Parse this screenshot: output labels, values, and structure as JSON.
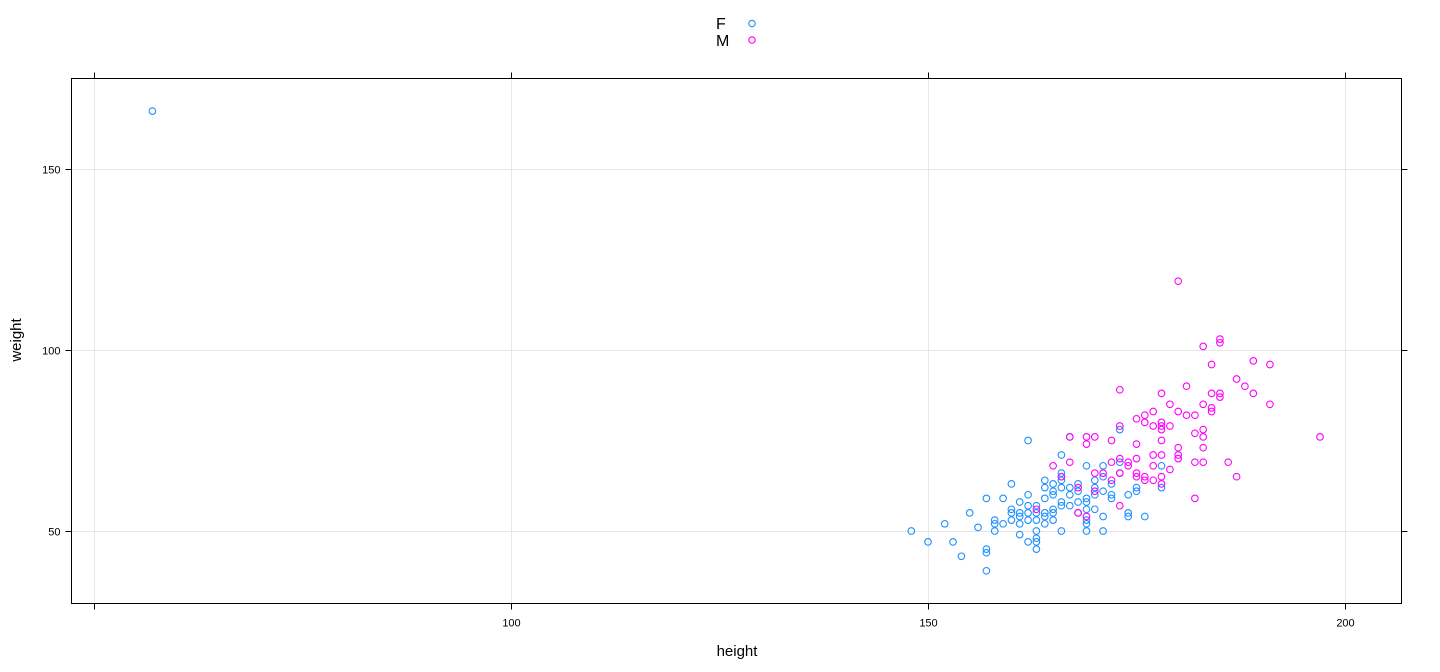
{
  "chart_data": {
    "type": "scatter",
    "title": "",
    "xlabel": "height",
    "ylabel": "weight",
    "xlim": [
      47.2,
      206.7
    ],
    "ylim": [
      30,
      175
    ],
    "x_ticks": [
      50,
      100,
      150,
      200
    ],
    "x_tick_labels": [
      "",
      "100",
      "150",
      "200"
    ],
    "y_ticks": [
      50,
      100,
      150
    ],
    "y_tick_labels": [
      "50",
      "100",
      "150"
    ],
    "grid": true,
    "legend": {
      "position": "top",
      "entries": [
        "F",
        "M"
      ]
    },
    "series": [
      {
        "name": "F",
        "color": "#1e90ff",
        "points": [
          [
            57,
            166
          ],
          [
            148,
            50
          ],
          [
            150,
            47
          ],
          [
            152,
            52
          ],
          [
            153,
            47
          ],
          [
            154,
            43
          ],
          [
            155,
            55
          ],
          [
            156,
            51
          ],
          [
            157,
            45
          ],
          [
            157,
            44
          ],
          [
            157,
            39
          ],
          [
            157,
            59
          ],
          [
            158,
            53
          ],
          [
            158,
            52
          ],
          [
            158,
            50
          ],
          [
            159,
            59
          ],
          [
            159,
            52
          ],
          [
            160,
            63
          ],
          [
            160,
            56
          ],
          [
            160,
            55
          ],
          [
            160,
            53
          ],
          [
            161,
            58
          ],
          [
            161,
            55
          ],
          [
            161,
            54
          ],
          [
            161,
            52
          ],
          [
            161,
            49
          ],
          [
            162,
            60
          ],
          [
            162,
            57
          ],
          [
            162,
            55
          ],
          [
            162,
            53
          ],
          [
            162,
            47
          ],
          [
            162,
            75
          ],
          [
            163,
            57
          ],
          [
            163,
            55
          ],
          [
            163,
            53
          ],
          [
            163,
            48
          ],
          [
            163,
            47
          ],
          [
            163,
            45
          ],
          [
            163,
            50
          ],
          [
            164,
            62
          ],
          [
            164,
            59
          ],
          [
            164,
            55
          ],
          [
            164,
            54
          ],
          [
            164,
            52
          ],
          [
            164,
            64
          ],
          [
            165,
            63
          ],
          [
            165,
            61
          ],
          [
            165,
            56
          ],
          [
            165,
            55
          ],
          [
            165,
            53
          ],
          [
            165,
            60
          ],
          [
            166,
            65
          ],
          [
            166,
            66
          ],
          [
            166,
            71
          ],
          [
            166,
            58
          ],
          [
            166,
            57
          ],
          [
            166,
            50
          ],
          [
            166,
            62
          ],
          [
            166,
            64
          ],
          [
            167,
            62
          ],
          [
            167,
            60
          ],
          [
            167,
            57
          ],
          [
            167,
            76
          ],
          [
            168,
            63
          ],
          [
            168,
            61
          ],
          [
            168,
            58
          ],
          [
            168,
            55
          ],
          [
            169,
            68
          ],
          [
            169,
            59
          ],
          [
            169,
            58
          ],
          [
            169,
            56
          ],
          [
            169,
            53
          ],
          [
            169,
            52
          ],
          [
            169,
            50
          ],
          [
            170,
            64
          ],
          [
            170,
            62
          ],
          [
            170,
            60
          ],
          [
            170,
            56
          ],
          [
            171,
            65
          ],
          [
            171,
            61
          ],
          [
            171,
            54
          ],
          [
            171,
            50
          ],
          [
            171,
            68
          ],
          [
            172,
            63
          ],
          [
            172,
            60
          ],
          [
            172,
            59
          ],
          [
            173,
            78
          ],
          [
            173,
            69
          ],
          [
            173,
            66
          ],
          [
            174,
            60
          ],
          [
            174,
            55
          ],
          [
            174,
            54
          ],
          [
            175,
            62
          ],
          [
            175,
            61
          ],
          [
            176,
            54
          ],
          [
            178,
            68
          ],
          [
            178,
            62
          ]
        ]
      },
      {
        "name": "M",
        "color": "#ff00ff",
        "points": [
          [
            163,
            56
          ],
          [
            165,
            68
          ],
          [
            166,
            65
          ],
          [
            167,
            76
          ],
          [
            167,
            69
          ],
          [
            168,
            62
          ],
          [
            168,
            55
          ],
          [
            169,
            76
          ],
          [
            169,
            74
          ],
          [
            169,
            54
          ],
          [
            170,
            66
          ],
          [
            170,
            76
          ],
          [
            170,
            61
          ],
          [
            171,
            66
          ],
          [
            172,
            75
          ],
          [
            172,
            69
          ],
          [
            172,
            64
          ],
          [
            173,
            89
          ],
          [
            173,
            79
          ],
          [
            173,
            70
          ],
          [
            173,
            66
          ],
          [
            173,
            57
          ],
          [
            174,
            69
          ],
          [
            174,
            68
          ],
          [
            175,
            81
          ],
          [
            175,
            74
          ],
          [
            175,
            70
          ],
          [
            175,
            66
          ],
          [
            175,
            65
          ],
          [
            176,
            82
          ],
          [
            176,
            80
          ],
          [
            176,
            65
          ],
          [
            176,
            64
          ],
          [
            177,
            83
          ],
          [
            177,
            79
          ],
          [
            177,
            71
          ],
          [
            177,
            68
          ],
          [
            177,
            64
          ],
          [
            178,
            88
          ],
          [
            178,
            80
          ],
          [
            178,
            79
          ],
          [
            178,
            78
          ],
          [
            178,
            75
          ],
          [
            178,
            71
          ],
          [
            178,
            65
          ],
          [
            178,
            63
          ],
          [
            179,
            85
          ],
          [
            179,
            79
          ],
          [
            179,
            67
          ],
          [
            180,
            119
          ],
          [
            180,
            83
          ],
          [
            180,
            73
          ],
          [
            180,
            71
          ],
          [
            180,
            70
          ],
          [
            181,
            90
          ],
          [
            181,
            82
          ],
          [
            182,
            82
          ],
          [
            182,
            77
          ],
          [
            182,
            69
          ],
          [
            182,
            59
          ],
          [
            183,
            101
          ],
          [
            183,
            85
          ],
          [
            183,
            78
          ],
          [
            183,
            76
          ],
          [
            183,
            73
          ],
          [
            183,
            69
          ],
          [
            184,
            96
          ],
          [
            184,
            88
          ],
          [
            184,
            84
          ],
          [
            184,
            83
          ],
          [
            185,
            103
          ],
          [
            185,
            102
          ],
          [
            185,
            88
          ],
          [
            185,
            87
          ],
          [
            186,
            69
          ],
          [
            187,
            92
          ],
          [
            187,
            65
          ],
          [
            188,
            90
          ],
          [
            189,
            97
          ],
          [
            189,
            88
          ],
          [
            191,
            96
          ],
          [
            191,
            85
          ],
          [
            197,
            76
          ]
        ]
      }
    ]
  },
  "legend": {
    "items": [
      {
        "label": "F",
        "color": "#1e90ff"
      },
      {
        "label": "M",
        "color": "#ff00ff"
      }
    ]
  },
  "axes": {
    "x_title": "height",
    "y_title": "weight"
  }
}
